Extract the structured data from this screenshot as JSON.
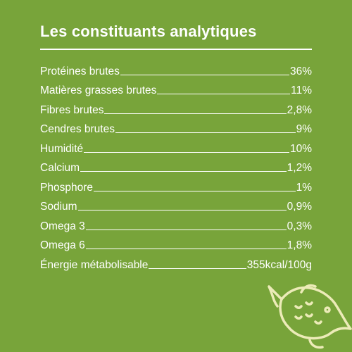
{
  "title": "Les constituants analytiques",
  "rows": [
    {
      "label": "Protéines brutes",
      "value": "36%"
    },
    {
      "label": "Matières grasses brutes",
      "value": "11%"
    },
    {
      "label": "Fibres brutes",
      "value": "2,8%"
    },
    {
      "label": "Cendres brutes",
      "value": "9%"
    },
    {
      "label": "Humidité",
      "value": "10%"
    },
    {
      "label": "Calcium",
      "value": "1,2%"
    },
    {
      "label": "Phosphore",
      "value": "1%"
    },
    {
      "label": "Sodium",
      "value": "0,9%"
    },
    {
      "label": "Omega 3",
      "value": "0,3%"
    },
    {
      "label": "Omega 6",
      "value": "1,8%"
    },
    {
      "label": "Énergie métabolisable",
      "value": "355kcal/100g"
    }
  ]
}
